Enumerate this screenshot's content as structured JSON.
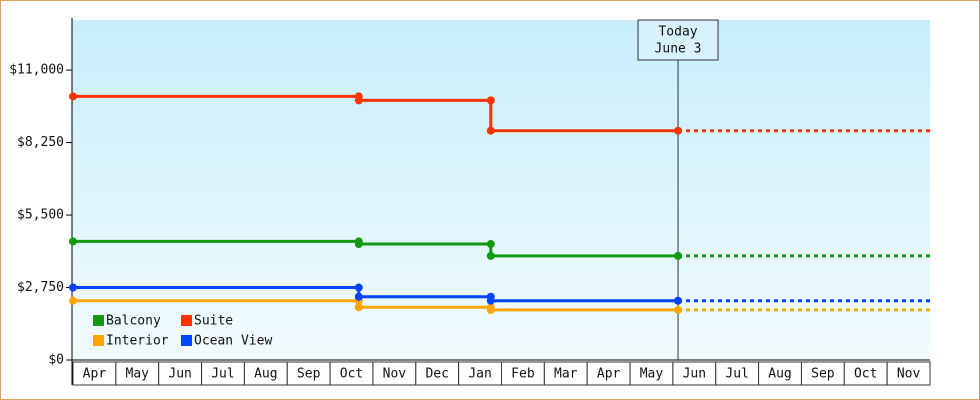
{
  "chart_data": {
    "type": "line",
    "categories": [
      "Apr",
      "May",
      "Jun",
      "Jul",
      "Aug",
      "Sep",
      "Oct",
      "Nov",
      "Dec",
      "Jan",
      "Feb",
      "Mar",
      "Apr",
      "May",
      "Jun",
      "Jul",
      "Aug",
      "Sep",
      "Oct",
      "Nov"
    ],
    "xlim": [
      0,
      20
    ],
    "ylim": [
      0,
      12900
    ],
    "yticks": [
      {
        "value": 0,
        "label": "$0"
      },
      {
        "value": 2750,
        "label": "$2,750"
      },
      {
        "value": 5500,
        "label": "$5,500"
      },
      {
        "value": 8250,
        "label": "$8,250"
      },
      {
        "value": 11000,
        "label": "$11,000"
      }
    ],
    "legend": "lower left",
    "today": {
      "x": 14.12,
      "label": [
        "Today",
        "June 3"
      ]
    },
    "series": [
      {
        "name": "Balcony",
        "color": "#119911",
        "x": [
          0,
          6.67,
          6.67,
          9.75,
          9.75,
          14.12
        ],
        "values": [
          4500,
          4500,
          4400,
          4400,
          3950,
          3950
        ]
      },
      {
        "name": "Suite",
        "color": "#ff3300",
        "x": [
          0,
          6.67,
          6.67,
          9.75,
          9.75,
          14.12
        ],
        "values": [
          10000,
          10000,
          9850,
          9850,
          8700,
          8700
        ]
      },
      {
        "name": "Interior",
        "color": "#ffa500",
        "x": [
          0,
          6.67,
          6.67,
          9.75,
          9.75,
          14.12
        ],
        "values": [
          2250,
          2250,
          2000,
          2000,
          1900,
          1900
        ]
      },
      {
        "name": "Ocean View",
        "color": "#0044ff",
        "x": [
          0,
          6.67,
          6.67,
          9.75,
          9.75,
          14.12
        ],
        "values": [
          2750,
          2750,
          2400,
          2400,
          2250,
          2250
        ]
      }
    ]
  }
}
